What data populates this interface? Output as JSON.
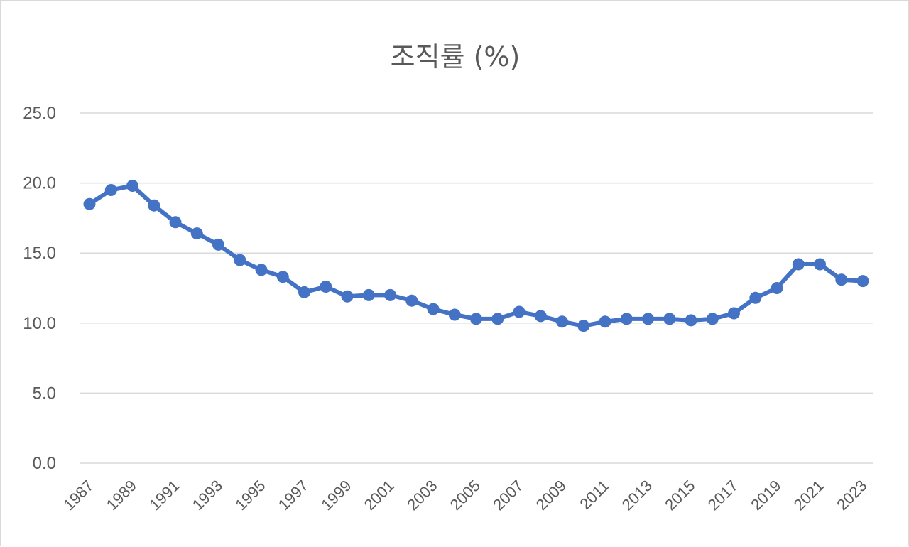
{
  "chart_data": {
    "type": "line",
    "title": "조직률 (%)",
    "xlabel": "",
    "ylabel": "",
    "ylim": [
      0,
      25
    ],
    "yticks": [
      "0.0",
      "5.0",
      "10.0",
      "15.0",
      "20.0",
      "25.0"
    ],
    "xtick_labels": [
      "1987",
      "1989",
      "1991",
      "1993",
      "1995",
      "1997",
      "1999",
      "2001",
      "2003",
      "2005",
      "2007",
      "2009",
      "2011",
      "2013",
      "2015",
      "2017",
      "2019",
      "2021",
      "2023"
    ],
    "grid": true,
    "legend": "none",
    "color": "#4472c4",
    "x": [
      1987,
      1988,
      1989,
      1990,
      1991,
      1992,
      1993,
      1994,
      1995,
      1996,
      1997,
      1998,
      1999,
      2000,
      2001,
      2002,
      2003,
      2004,
      2005,
      2006,
      2007,
      2008,
      2009,
      2010,
      2011,
      2012,
      2013,
      2014,
      2015,
      2016,
      2017,
      2018,
      2019,
      2020,
      2021,
      2022,
      2023
    ],
    "series": [
      {
        "values": [
          18.5,
          19.5,
          19.8,
          18.4,
          17.2,
          16.4,
          15.6,
          14.5,
          13.8,
          13.3,
          12.2,
          12.6,
          11.9,
          12.0,
          12.0,
          11.6,
          11.0,
          10.6,
          10.3,
          10.3,
          10.8,
          10.5,
          10.1,
          9.8,
          10.1,
          10.3,
          10.3,
          10.3,
          10.2,
          10.3,
          10.7,
          11.8,
          12.5,
          14.2,
          14.2,
          13.1,
          13.0
        ]
      }
    ]
  }
}
